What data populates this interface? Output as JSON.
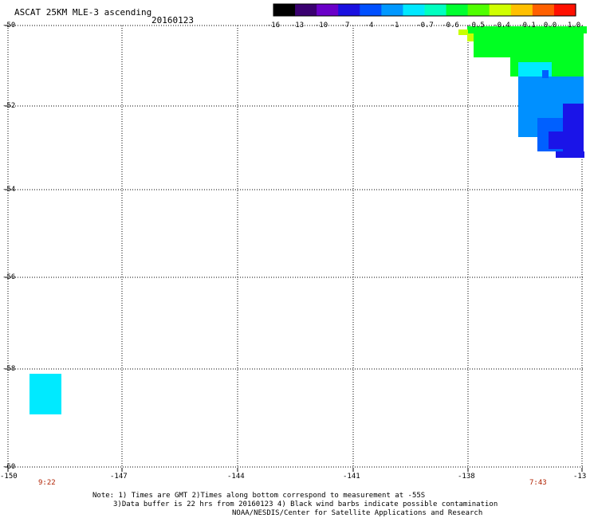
{
  "header": {
    "title": "ASCAT 25KM MLE-3 ascending",
    "date": "20160123"
  },
  "colorbar": {
    "labels": [
      "-16",
      "-13",
      "-10",
      "-7",
      "-4",
      "-1",
      "-0.7",
      "-0.6",
      "-0.5",
      "-0.4",
      "-0.1",
      "0.0",
      "1.0"
    ],
    "colors": [
      "#000000",
      "#3a0070",
      "#6a00c8",
      "#1a10e0",
      "#0050ff",
      "#0098ff",
      "#00e8ff",
      "#00ffc0",
      "#00ff30",
      "#50ff00",
      "#d0ff00",
      "#ffc000",
      "#ff6000",
      "#ff1000"
    ]
  },
  "axes": {
    "lat_labels": [
      "-50",
      "-52",
      "-54",
      "-56",
      "-58",
      "-60"
    ],
    "lon_labels": [
      "-150",
      "-147",
      "-144",
      "-141",
      "-138",
      "-13"
    ],
    "grid": true
  },
  "times": {
    "left": "9:22",
    "right": "7:43"
  },
  "notes": {
    "line1": "Note: 1) Times are GMT 2)Times along bottom correspond to measurement at -55S",
    "line2": "3)Data buffer is 22 hrs from 20160123 4) Black wind barbs indicate possible contamination",
    "line3": "NOAA/NESDIS/Center for Satellite Applications and Research"
  },
  "swath_colors": {
    "green": "#00ff22",
    "cyan": "#00eaff",
    "light_blue": "#0090ff",
    "mid_blue": "#0060ff",
    "dark_blue": "#1a14e8",
    "yellow": "#c8ff00"
  }
}
